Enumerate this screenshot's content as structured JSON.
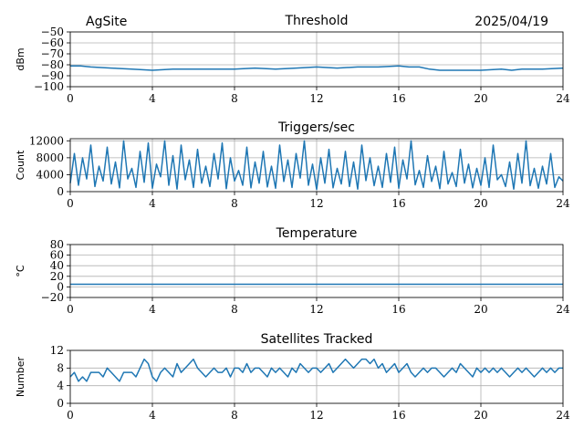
{
  "header": {
    "site": "AgSite",
    "date": "2025/04/19"
  },
  "series_color": "#1f77b4",
  "grid_color": "#b0b0b0",
  "chart_data": [
    {
      "type": "line",
      "title": "Threshold",
      "ylabel": "dBm",
      "xlim": [
        0,
        24
      ],
      "ylim": [
        -100,
        -50
      ],
      "xticks": [
        0,
        4,
        8,
        12,
        16,
        20,
        24
      ],
      "yticks": [
        -100,
        -90,
        -80,
        -70,
        -60,
        -50
      ],
      "ytick_labels": [
        "−100",
        "−90",
        "−80",
        "−70",
        "−60",
        "−50"
      ],
      "series": [
        {
          "x": [
            0,
            0.5,
            1,
            2,
            3,
            4,
            5,
            6,
            7,
            8,
            9,
            10,
            11,
            12,
            13,
            14,
            15,
            16,
            16.5,
            17,
            17.5,
            18,
            19,
            20,
            21,
            21.5,
            22,
            23,
            24
          ],
          "y": [
            -81,
            -81,
            -82,
            -83,
            -84,
            -85,
            -84,
            -84,
            -84,
            -84,
            -83,
            -84,
            -83,
            -82,
            -83,
            -82,
            -82,
            -81,
            -82,
            -82,
            -84,
            -85,
            -85,
            -85,
            -84,
            -85,
            -84,
            -84,
            -83
          ]
        }
      ]
    },
    {
      "type": "line",
      "title": "Triggers/sec",
      "ylabel": "Count",
      "xlim": [
        0,
        24
      ],
      "ylim": [
        0,
        12500
      ],
      "xticks": [
        0,
        4,
        8,
        12,
        16,
        20,
        24
      ],
      "yticks": [
        0,
        4000,
        8000,
        12000
      ],
      "ytick_labels": [
        "0",
        "4000",
        "8000",
        "12000"
      ],
      "series": [
        {
          "x": [
            0,
            0.2,
            0.4,
            0.6,
            0.8,
            1,
            1.2,
            1.4,
            1.6,
            1.8,
            2,
            2.2,
            2.4,
            2.6,
            2.8,
            3,
            3.2,
            3.4,
            3.6,
            3.8,
            4,
            4.2,
            4.4,
            4.6,
            4.8,
            5,
            5.2,
            5.4,
            5.6,
            5.8,
            6,
            6.2,
            6.4,
            6.6,
            6.8,
            7,
            7.2,
            7.4,
            7.6,
            7.8,
            8,
            8.2,
            8.4,
            8.6,
            8.8,
            9,
            9.2,
            9.4,
            9.6,
            9.8,
            10,
            10.2,
            10.4,
            10.6,
            10.8,
            11,
            11.2,
            11.4,
            11.6,
            11.8,
            12,
            12.2,
            12.4,
            12.6,
            12.8,
            13,
            13.2,
            13.4,
            13.6,
            13.8,
            14,
            14.2,
            14.4,
            14.6,
            14.8,
            15,
            15.2,
            15.4,
            15.6,
            15.8,
            16,
            16.2,
            16.4,
            16.6,
            16.8,
            17,
            17.2,
            17.4,
            17.6,
            17.8,
            18,
            18.2,
            18.4,
            18.6,
            18.8,
            19,
            19.2,
            19.4,
            19.6,
            19.8,
            20,
            20.2,
            20.4,
            20.6,
            20.8,
            21,
            21.2,
            21.4,
            21.6,
            21.8,
            22,
            22.2,
            22.4,
            22.6,
            22.8,
            23,
            23.2,
            23.4,
            23.6,
            23.8,
            24
          ],
          "y": [
            2000,
            9000,
            1500,
            8000,
            3000,
            11000,
            1200,
            6000,
            2500,
            10500,
            1800,
            7000,
            900,
            12000,
            3000,
            5500,
            1000,
            9500,
            2200,
            11500,
            800,
            6500,
            3500,
            12000,
            1500,
            8500,
            600,
            11000,
            2800,
            7500,
            1000,
            10000,
            2000,
            6000,
            1200,
            9000,
            3000,
            11500,
            700,
            8000,
            2500,
            5000,
            1500,
            10500,
            900,
            7000,
            2000,
            9500,
            1100,
            6000,
            800,
            11000,
            2400,
            7500,
            1000,
            9000,
            3200,
            12000,
            1500,
            6500,
            500,
            8000,
            2000,
            10000,
            900,
            5500,
            1800,
            9500,
            1200,
            7000,
            600,
            11000,
            2600,
            8000,
            1400,
            6000,
            1000,
            9000,
            2200,
            10500,
            800,
            7500,
            3000,
            12000,
            1600,
            5000,
            1000,
            8500,
            2400,
            6000,
            700,
            9500,
            1800,
            4500,
            1200,
            10000,
            2000,
            6500,
            900,
            5500,
            1500,
            8000,
            1000,
            11000,
            2800,
            4000,
            1200,
            7000,
            600,
            9000,
            2000,
            12000,
            1400,
            5500,
            800,
            6000,
            1800,
            9000,
            1000,
            3500,
            2500
          ]
        }
      ]
    },
    {
      "type": "line",
      "title": "Temperature",
      "ylabel": "°C",
      "xlim": [
        0,
        24
      ],
      "ylim": [
        -20,
        80
      ],
      "xticks": [
        0,
        4,
        8,
        12,
        16,
        20,
        24
      ],
      "yticks": [
        -20,
        0,
        20,
        40,
        60,
        80
      ],
      "ytick_labels": [
        "−20",
        "0",
        "20",
        "40",
        "60",
        "80"
      ],
      "series": [
        {
          "x": [
            0,
            24
          ],
          "y": [
            5,
            5
          ]
        }
      ]
    },
    {
      "type": "line",
      "title": "Satellites Tracked",
      "ylabel": "Number",
      "xlim": [
        0,
        24
      ],
      "ylim": [
        0,
        12
      ],
      "xticks": [
        0,
        4,
        8,
        12,
        16,
        20,
        24
      ],
      "yticks": [
        0,
        4,
        8,
        12
      ],
      "ytick_labels": [
        "0",
        "4",
        "8",
        "12"
      ],
      "series": [
        {
          "x": [
            0,
            0.2,
            0.4,
            0.6,
            0.8,
            1,
            1.2,
            1.4,
            1.6,
            1.8,
            2,
            2.2,
            2.4,
            2.6,
            2.8,
            3,
            3.2,
            3.4,
            3.6,
            3.8,
            4,
            4.2,
            4.4,
            4.6,
            4.8,
            5,
            5.2,
            5.4,
            5.6,
            5.8,
            6,
            6.2,
            6.4,
            6.6,
            6.8,
            7,
            7.2,
            7.4,
            7.6,
            7.8,
            8,
            8.2,
            8.4,
            8.6,
            8.8,
            9,
            9.2,
            9.4,
            9.6,
            9.8,
            10,
            10.2,
            10.4,
            10.6,
            10.8,
            11,
            11.2,
            11.4,
            11.6,
            11.8,
            12,
            12.2,
            12.4,
            12.6,
            12.8,
            13,
            13.2,
            13.4,
            13.6,
            13.8,
            14,
            14.2,
            14.4,
            14.6,
            14.8,
            15,
            15.2,
            15.4,
            15.6,
            15.8,
            16,
            16.2,
            16.4,
            16.6,
            16.8,
            17,
            17.2,
            17.4,
            17.6,
            17.8,
            18,
            18.2,
            18.4,
            18.6,
            18.8,
            19,
            19.2,
            19.4,
            19.6,
            19.8,
            20,
            20.2,
            20.4,
            20.6,
            20.8,
            21,
            21.2,
            21.4,
            21.6,
            21.8,
            22,
            22.2,
            22.4,
            22.6,
            22.8,
            23,
            23.2,
            23.4,
            23.6,
            23.8,
            24
          ],
          "y": [
            6,
            7,
            5,
            6,
            5,
            7,
            7,
            7,
            6,
            8,
            7,
            6,
            5,
            7,
            7,
            7,
            6,
            8,
            10,
            9,
            6,
            5,
            7,
            8,
            7,
            6,
            9,
            7,
            8,
            9,
            10,
            8,
            7,
            6,
            7,
            8,
            7,
            7,
            8,
            6,
            8,
            8,
            7,
            9,
            7,
            8,
            8,
            7,
            6,
            8,
            7,
            8,
            7,
            6,
            8,
            7,
            9,
            8,
            7,
            8,
            8,
            7,
            8,
            9,
            7,
            8,
            9,
            10,
            9,
            8,
            9,
            10,
            10,
            9,
            10,
            8,
            9,
            7,
            8,
            9,
            7,
            8,
            9,
            7,
            6,
            7,
            8,
            7,
            8,
            8,
            7,
            6,
            7,
            8,
            7,
            9,
            8,
            7,
            6,
            8,
            7,
            8,
            7,
            8,
            7,
            8,
            7,
            6,
            7,
            8,
            7,
            8,
            7,
            6,
            7,
            8,
            7,
            8,
            7,
            8,
            8
          ]
        }
      ]
    }
  ]
}
